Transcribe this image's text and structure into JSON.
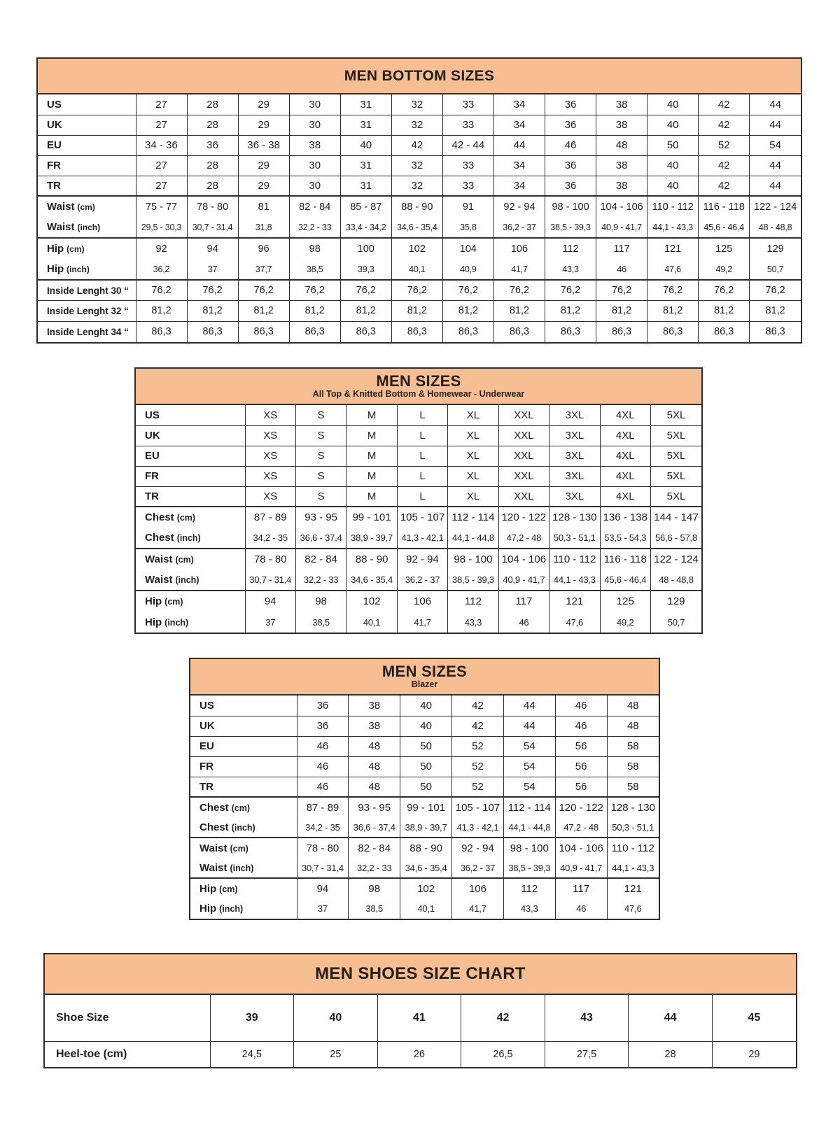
{
  "colors": {
    "header_bg": "#F6BE91",
    "border": "#2E2E2E",
    "text": "#1D1D1D"
  },
  "tables": [
    {
      "id": "bottom-sizes",
      "title": "MEN BOTTOM SIZES",
      "rows": [
        {
          "label": "US",
          "unit": "",
          "cls": "sz t0",
          "cells": [
            "27",
            "28",
            "29",
            "30",
            "31",
            "32",
            "33",
            "34",
            "36",
            "38",
            "40",
            "42",
            "44"
          ]
        },
        {
          "label": "UK",
          "unit": "",
          "cls": "sz t1",
          "cells": [
            "27",
            "28",
            "29",
            "30",
            "31",
            "32",
            "33",
            "34",
            "36",
            "38",
            "40",
            "42",
            "44"
          ]
        },
        {
          "label": "EU",
          "unit": "",
          "cls": "sz t1",
          "cells": [
            "34 - 36",
            "36",
            "36 - 38",
            "38",
            "40",
            "42",
            "42 - 44",
            "44",
            "46",
            "48",
            "50",
            "52",
            "54"
          ]
        },
        {
          "label": "FR",
          "unit": "",
          "cls": "sz t1",
          "cells": [
            "27",
            "28",
            "29",
            "30",
            "31",
            "32",
            "33",
            "34",
            "36",
            "38",
            "40",
            "42",
            "44"
          ]
        },
        {
          "label": "TR",
          "unit": "",
          "cls": "sz t1",
          "cells": [
            "27",
            "28",
            "29",
            "30",
            "31",
            "32",
            "33",
            "34",
            "36",
            "38",
            "40",
            "42",
            "44"
          ]
        },
        {
          "label": "Waist",
          "unit": "(cm)",
          "cls": "cm t2",
          "cells": [
            "75 - 77",
            "78 - 80",
            "81",
            "82 - 84",
            "85 - 87",
            "88 - 90",
            "91",
            "92 - 94",
            "98 - 100",
            "104 - 106",
            "110 - 112",
            "116 - 118",
            "122 - 124"
          ]
        },
        {
          "label": "Waist",
          "unit": "(inch)",
          "cls": "in t0",
          "cells": [
            "29,5 - 30,3",
            "30,7 - 31,4",
            "31,8",
            "32,2 - 33",
            "33,4 - 34,2",
            "34,6 - 35,4",
            "35,8",
            "36,2 - 37",
            "38,5 - 39,3",
            "40,9 - 41,7",
            "44,1 - 43,3",
            "45,6 - 46,4",
            "48 - 48,8"
          ]
        },
        {
          "label": "Hip",
          "unit": "(cm)",
          "cls": "cm t2",
          "cells": [
            "92",
            "94",
            "96",
            "98",
            "100",
            "102",
            "104",
            "106",
            "112",
            "117",
            "121",
            "125",
            "129"
          ]
        },
        {
          "label": "Hip",
          "unit": "(inch)",
          "cls": "in t0",
          "cells": [
            "36,2",
            "37",
            "37,7",
            "38,5",
            "39,3",
            "40,1",
            "40,9",
            "41,7",
            "43,3",
            "46",
            "47,6",
            "49,2",
            "50,7"
          ]
        },
        {
          "label": "Inside Lenght 30 “",
          "unit": "",
          "cls": "il t2",
          "cells": [
            "76,2",
            "76,2",
            "76,2",
            "76,2",
            "76,2",
            "76,2",
            "76,2",
            "76,2",
            "76,2",
            "76,2",
            "76,2",
            "76,2",
            "76,2"
          ]
        },
        {
          "label": "Inside Lenght 32 “",
          "unit": "",
          "cls": "il t1",
          "cells": [
            "81,2",
            "81,2",
            "81,2",
            "81,2",
            "81,2",
            "81,2",
            "81,2",
            "81,2",
            "81,2",
            "81,2",
            "81,2",
            "81,2",
            "81,2"
          ]
        },
        {
          "label": "Inside Lenght 34 “",
          "unit": "",
          "cls": "il t1",
          "cells": [
            "86,3",
            "86,3",
            "86,3",
            "86,3",
            "86,3",
            "86,3",
            "86,3",
            "86,3",
            "86,3",
            "86,3",
            "86,3",
            "86,3",
            "86,3"
          ]
        }
      ]
    },
    {
      "id": "men-sizes-top",
      "title": "MEN SIZES",
      "subtitle": "All Top & Knitted Bottom & Homewear - Underwear",
      "rows": [
        {
          "label": "US",
          "unit": "",
          "cls": "sz t0",
          "cells": [
            "XS",
            "S",
            "M",
            "L",
            "XL",
            "XXL",
            "3XL",
            "4XL",
            "5XL"
          ]
        },
        {
          "label": "UK",
          "unit": "",
          "cls": "sz t1",
          "cells": [
            "XS",
            "S",
            "M",
            "L",
            "XL",
            "XXL",
            "3XL",
            "4XL",
            "5XL"
          ]
        },
        {
          "label": "EU",
          "unit": "",
          "cls": "sz t1",
          "cells": [
            "XS",
            "S",
            "M",
            "L",
            "XL",
            "XXL",
            "3XL",
            "4XL",
            "5XL"
          ]
        },
        {
          "label": "FR",
          "unit": "",
          "cls": "sz t1",
          "cells": [
            "XS",
            "S",
            "M",
            "L",
            "XL",
            "XXL",
            "3XL",
            "4XL",
            "5XL"
          ]
        },
        {
          "label": "TR",
          "unit": "",
          "cls": "sz t1",
          "cells": [
            "XS",
            "S",
            "M",
            "L",
            "XL",
            "XXL",
            "3XL",
            "4XL",
            "5XL"
          ]
        },
        {
          "label": "Chest",
          "unit": "(cm)",
          "cls": "cm t2",
          "cells": [
            "87 - 89",
            "93 - 95",
            "99 - 101",
            "105 - 107",
            "112 - 114",
            "120 - 122",
            "128 - 130",
            "136 - 138",
            "144 - 147"
          ]
        },
        {
          "label": "Chest",
          "unit": "(inch)",
          "cls": "in t0",
          "cells": [
            "34,2 - 35",
            "36,6 - 37,4",
            "38,9 - 39,7",
            "41,3 - 42,1",
            "44,1 - 44,8",
            "47,2 - 48",
            "50,3 - 51,1",
            "53,5 - 54,3",
            "56,6 - 57,8"
          ]
        },
        {
          "label": "Waist",
          "unit": "(cm)",
          "cls": "cm t2",
          "cells": [
            "78 - 80",
            "82 - 84",
            "88 - 90",
            "92 - 94",
            "98 - 100",
            "104 - 106",
            "110 - 112",
            "116 - 118",
            "122 - 124"
          ]
        },
        {
          "label": "Waist",
          "unit": "(inch)",
          "cls": "in t0",
          "cells": [
            "30,7 - 31,4",
            "32,2 - 33",
            "34,6 - 35,4",
            "36,2 - 37",
            "38,5 - 39,3",
            "40,9 - 41,7",
            "44,1 - 43,3",
            "45,6 - 46,4",
            "48 - 48,8"
          ]
        },
        {
          "label": "Hip",
          "unit": "(cm)",
          "cls": "cm t2",
          "cells": [
            "94",
            "98",
            "102",
            "106",
            "112",
            "117",
            "121",
            "125",
            "129"
          ]
        },
        {
          "label": "Hip",
          "unit": "(inch)",
          "cls": "in t0",
          "cells": [
            "37",
            "38,5",
            "40,1",
            "41,7",
            "43,3",
            "46",
            "47,6",
            "49,2",
            "50,7"
          ]
        }
      ]
    },
    {
      "id": "men-sizes-blazer",
      "title": "MEN SIZES",
      "subtitle": "Blazer",
      "rows": [
        {
          "label": "US",
          "unit": "",
          "cls": "sz t0",
          "cells": [
            "36",
            "38",
            "40",
            "42",
            "44",
            "46",
            "48"
          ]
        },
        {
          "label": "UK",
          "unit": "",
          "cls": "sz t1",
          "cells": [
            "36",
            "38",
            "40",
            "42",
            "44",
            "46",
            "48"
          ]
        },
        {
          "label": "EU",
          "unit": "",
          "cls": "sz t1",
          "cells": [
            "46",
            "48",
            "50",
            "52",
            "54",
            "56",
            "58"
          ]
        },
        {
          "label": "FR",
          "unit": "",
          "cls": "sz t1",
          "cells": [
            "46",
            "48",
            "50",
            "52",
            "54",
            "56",
            "58"
          ]
        },
        {
          "label": "TR",
          "unit": "",
          "cls": "sz t1",
          "cells": [
            "46",
            "48",
            "50",
            "52",
            "54",
            "56",
            "58"
          ]
        },
        {
          "label": "Chest",
          "unit": "(cm)",
          "cls": "cm t2",
          "cells": [
            "87 - 89",
            "93 - 95",
            "99 - 101",
            "105 - 107",
            "112 - 114",
            "120 - 122",
            "128 - 130"
          ]
        },
        {
          "label": "Chest",
          "unit": "(inch)",
          "cls": "in t0",
          "cells": [
            "34,2 - 35",
            "36,6 - 37,4",
            "38,9 - 39,7",
            "41,3 - 42,1",
            "44,1 - 44,8",
            "47,2 - 48",
            "50,3 - 51,1"
          ]
        },
        {
          "label": "Waist",
          "unit": "(cm)",
          "cls": "cm t2",
          "cells": [
            "78 - 80",
            "82 - 84",
            "88 - 90",
            "92 - 94",
            "98 - 100",
            "104 - 106",
            "110 - 112"
          ]
        },
        {
          "label": "Waist",
          "unit": "(inch)",
          "cls": "in t0",
          "cells": [
            "30,7 - 31,4",
            "32,2 - 33",
            "34,6 - 35,4",
            "36,2 - 37",
            "38,5 - 39,3",
            "40,9 - 41,7",
            "44,1 - 43,3"
          ]
        },
        {
          "label": "Hip",
          "unit": "(cm)",
          "cls": "cm t2",
          "cells": [
            "94",
            "98",
            "102",
            "106",
            "112",
            "117",
            "121"
          ]
        },
        {
          "label": "Hip",
          "unit": "(inch)",
          "cls": "in t0",
          "cells": [
            "37",
            "38,5",
            "40,1",
            "41,7",
            "43,3",
            "46",
            "47,6"
          ]
        }
      ]
    },
    {
      "id": "shoes",
      "title": "MEN SHOES SIZE CHART",
      "rows": [
        {
          "label": "Shoe Size",
          "unit": "",
          "cls": "shoe t0",
          "cells": [
            "39",
            "40",
            "41",
            "42",
            "43",
            "44",
            "45"
          ]
        },
        {
          "label": "Heel-toe (cm)",
          "unit": "",
          "cls": "heel t1",
          "cells": [
            "24,5",
            "25",
            "26",
            "26,5",
            "27,5",
            "28",
            "29"
          ]
        }
      ]
    }
  ]
}
